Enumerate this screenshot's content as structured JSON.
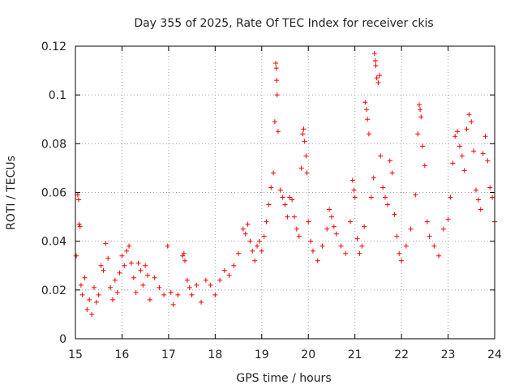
{
  "chart_data": {
    "type": "scatter",
    "title": "Day 355 of 2025, Rate Of TEC Index for receiver ckis",
    "xlabel": "GPS time / hours",
    "ylabel": "ROTI / TECUs",
    "xlim": [
      15,
      24
    ],
    "ylim": [
      0,
      0.12
    ],
    "xticks": [
      "15",
      "16",
      "17",
      "18",
      "19",
      "20",
      "21",
      "22",
      "23",
      "24"
    ],
    "yticks": [
      "0",
      "0.02",
      "0.04",
      "0.06",
      "0.08",
      "0.1",
      "0.12"
    ],
    "grid": true,
    "marker": "+",
    "color": "#ff0000",
    "series": [
      {
        "points": [
          [
            15.02,
            0.034
          ],
          [
            15.05,
            0.059
          ],
          [
            15.07,
            0.057
          ],
          [
            15.08,
            0.047
          ],
          [
            15.1,
            0.046
          ],
          [
            15.12,
            0.022
          ],
          [
            15.15,
            0.018
          ],
          [
            15.2,
            0.025
          ],
          [
            15.25,
            0.012
          ],
          [
            15.3,
            0.016
          ],
          [
            15.35,
            0.01
          ],
          [
            15.4,
            0.021
          ],
          [
            15.45,
            0.015
          ],
          [
            15.5,
            0.018
          ],
          [
            15.55,
            0.03
          ],
          [
            15.6,
            0.028
          ],
          [
            15.65,
            0.039
          ],
          [
            15.7,
            0.033
          ],
          [
            15.75,
            0.021
          ],
          [
            15.8,
            0.016
          ],
          [
            15.85,
            0.024
          ],
          [
            15.9,
            0.019
          ],
          [
            15.95,
            0.027
          ],
          [
            16.0,
            0.034
          ],
          [
            16.05,
            0.03
          ],
          [
            16.1,
            0.036
          ],
          [
            16.15,
            0.038
          ],
          [
            16.2,
            0.031
          ],
          [
            16.25,
            0.025
          ],
          [
            16.3,
            0.019
          ],
          [
            16.35,
            0.031
          ],
          [
            16.4,
            0.028
          ],
          [
            16.45,
            0.022
          ],
          [
            16.5,
            0.03
          ],
          [
            16.55,
            0.026
          ],
          [
            16.6,
            0.016
          ],
          [
            16.7,
            0.025
          ],
          [
            16.8,
            0.021
          ],
          [
            16.9,
            0.018
          ],
          [
            16.98,
            0.038
          ],
          [
            17.05,
            0.019
          ],
          [
            17.1,
            0.014
          ],
          [
            17.2,
            0.018
          ],
          [
            17.3,
            0.034
          ],
          [
            17.33,
            0.035
          ],
          [
            17.35,
            0.032
          ],
          [
            17.4,
            0.024
          ],
          [
            17.45,
            0.021
          ],
          [
            17.5,
            0.018
          ],
          [
            17.6,
            0.022
          ],
          [
            17.7,
            0.015
          ],
          [
            17.8,
            0.024
          ],
          [
            17.9,
            0.022
          ],
          [
            18.0,
            0.018
          ],
          [
            18.1,
            0.024
          ],
          [
            18.2,
            0.028
          ],
          [
            18.3,
            0.026
          ],
          [
            18.4,
            0.03
          ],
          [
            18.5,
            0.035
          ],
          [
            18.6,
            0.045
          ],
          [
            18.65,
            0.043
          ],
          [
            18.7,
            0.047
          ],
          [
            18.75,
            0.04
          ],
          [
            18.8,
            0.036
          ],
          [
            18.85,
            0.032
          ],
          [
            18.9,
            0.038
          ],
          [
            18.95,
            0.04
          ],
          [
            19.0,
            0.036
          ],
          [
            19.05,
            0.042
          ],
          [
            19.1,
            0.048
          ],
          [
            19.15,
            0.055
          ],
          [
            19.2,
            0.062
          ],
          [
            19.25,
            0.068
          ],
          [
            19.28,
            0.089
          ],
          [
            19.3,
            0.113
          ],
          [
            19.31,
            0.111
          ],
          [
            19.32,
            0.106
          ],
          [
            19.33,
            0.1
          ],
          [
            19.35,
            0.085
          ],
          [
            19.4,
            0.061
          ],
          [
            19.45,
            0.058
          ],
          [
            19.5,
            0.055
          ],
          [
            19.55,
            0.05
          ],
          [
            19.6,
            0.058
          ],
          [
            19.65,
            0.057
          ],
          [
            19.7,
            0.05
          ],
          [
            19.75,
            0.045
          ],
          [
            19.8,
            0.042
          ],
          [
            19.85,
            0.07
          ],
          [
            19.88,
            0.084
          ],
          [
            19.9,
            0.086
          ],
          [
            19.92,
            0.081
          ],
          [
            19.95,
            0.075
          ],
          [
            19.97,
            0.068
          ],
          [
            20.0,
            0.048
          ],
          [
            20.05,
            0.04
          ],
          [
            20.1,
            0.036
          ],
          [
            20.2,
            0.032
          ],
          [
            20.3,
            0.038
          ],
          [
            20.4,
            0.045
          ],
          [
            20.45,
            0.053
          ],
          [
            20.5,
            0.05
          ],
          [
            20.55,
            0.046
          ],
          [
            20.6,
            0.043
          ],
          [
            20.7,
            0.038
          ],
          [
            20.8,
            0.035
          ],
          [
            20.9,
            0.048
          ],
          [
            20.95,
            0.065
          ],
          [
            20.98,
            0.061
          ],
          [
            21.0,
            0.058
          ],
          [
            21.05,
            0.041
          ],
          [
            21.1,
            0.035
          ],
          [
            21.15,
            0.038
          ],
          [
            21.2,
            0.046
          ],
          [
            21.22,
            0.097
          ],
          [
            21.25,
            0.094
          ],
          [
            21.27,
            0.09
          ],
          [
            21.3,
            0.084
          ],
          [
            21.35,
            0.058
          ],
          [
            21.4,
            0.066
          ],
          [
            21.42,
            0.117
          ],
          [
            21.44,
            0.114
          ],
          [
            21.45,
            0.112
          ],
          [
            21.47,
            0.107
          ],
          [
            21.5,
            0.105
          ],
          [
            21.53,
            0.108
          ],
          [
            21.55,
            0.075
          ],
          [
            21.6,
            0.062
          ],
          [
            21.65,
            0.058
          ],
          [
            21.7,
            0.055
          ],
          [
            21.75,
            0.073
          ],
          [
            21.8,
            0.068
          ],
          [
            21.85,
            0.051
          ],
          [
            21.9,
            0.042
          ],
          [
            21.95,
            0.035
          ],
          [
            22.0,
            0.032
          ],
          [
            22.1,
            0.038
          ],
          [
            22.2,
            0.045
          ],
          [
            22.3,
            0.059
          ],
          [
            22.35,
            0.084
          ],
          [
            22.38,
            0.096
          ],
          [
            22.4,
            0.094
          ],
          [
            22.42,
            0.091
          ],
          [
            22.45,
            0.079
          ],
          [
            22.5,
            0.071
          ],
          [
            22.55,
            0.048
          ],
          [
            22.6,
            0.042
          ],
          [
            22.7,
            0.038
          ],
          [
            22.8,
            0.034
          ],
          [
            22.9,
            0.045
          ],
          [
            23.0,
            0.049
          ],
          [
            23.05,
            0.058
          ],
          [
            23.1,
            0.072
          ],
          [
            23.15,
            0.083
          ],
          [
            23.2,
            0.085
          ],
          [
            23.25,
            0.079
          ],
          [
            23.3,
            0.075
          ],
          [
            23.35,
            0.069
          ],
          [
            23.4,
            0.086
          ],
          [
            23.45,
            0.092
          ],
          [
            23.5,
            0.089
          ],
          [
            23.55,
            0.077
          ],
          [
            23.6,
            0.061
          ],
          [
            23.65,
            0.057
          ],
          [
            23.7,
            0.053
          ],
          [
            23.75,
            0.076
          ],
          [
            23.8,
            0.083
          ],
          [
            23.85,
            0.073
          ],
          [
            23.9,
            0.062
          ],
          [
            23.95,
            0.058
          ],
          [
            24.0,
            0.048
          ]
        ]
      }
    ]
  }
}
